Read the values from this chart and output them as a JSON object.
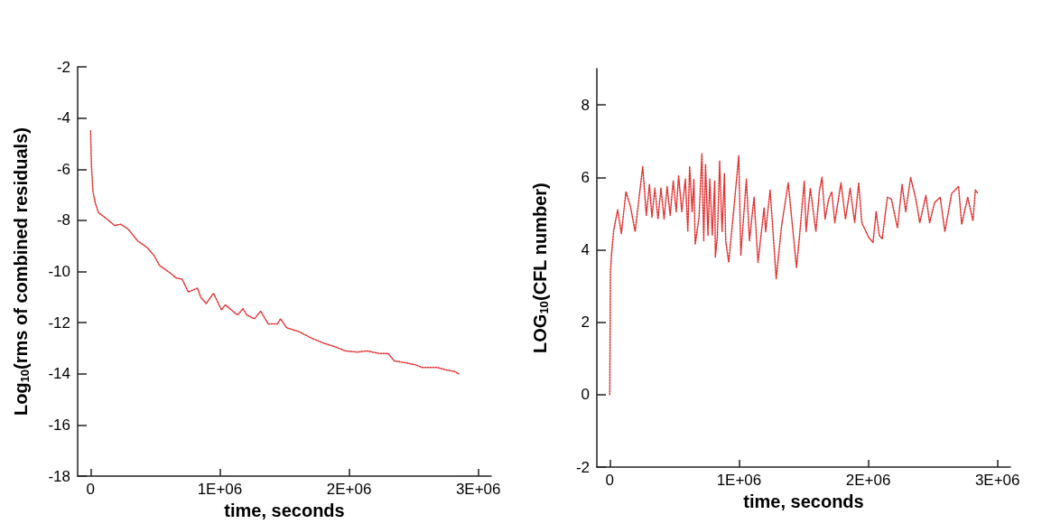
{
  "chart_data": [
    {
      "type": "line",
      "xlabel": "time, seconds",
      "ylabel": "Log$_{10}$(rms of combined residuals)",
      "line_style": "dotted",
      "marker": "none",
      "xlim": [
        -100000,
        3100000
      ],
      "xticks": [
        0,
        {
          "value": 1000000,
          "label": "1E+06"
        },
        {
          "value": 2000000,
          "label": "2E+06"
        },
        {
          "value": 3000000,
          "label": "3E+06"
        }
      ],
      "ylim": [
        -18,
        -2
      ],
      "yticks": [
        -18,
        -16,
        -14,
        -12,
        -10,
        -8,
        -6,
        -4,
        -2
      ],
      "series": [
        {
          "color": "#e03030",
          "x": [
            0,
            7000,
            19000,
            38000,
            62000,
            114000,
            186000,
            233000,
            293000,
            364000,
            435000,
            495000,
            531000,
            614000,
            661000,
            709000,
            756000,
            828000,
            852000,
            894000,
            951000,
            1013000,
            1042000,
            1137000,
            1180000,
            1208000,
            1268000,
            1316000,
            1375000,
            1446000,
            1470000,
            1518000,
            1613000,
            1708000,
            1803000,
            1898000,
            1970000,
            2065000,
            2136000,
            2232000,
            2303000,
            2351000,
            2422000,
            2517000,
            2565000,
            2684000,
            2755000,
            2814000,
            2850000
          ],
          "values": [
            -4.5,
            -5.9,
            -6.9,
            -7.35,
            -7.7,
            -7.9,
            -8.2,
            -8.15,
            -8.35,
            -8.8,
            -9.05,
            -9.4,
            -9.75,
            -10.05,
            -10.25,
            -10.3,
            -10.8,
            -10.65,
            -11.0,
            -11.25,
            -10.85,
            -11.5,
            -11.3,
            -11.7,
            -11.45,
            -11.7,
            -11.85,
            -11.55,
            -12.05,
            -12.05,
            -11.85,
            -12.2,
            -12.35,
            -12.6,
            -12.8,
            -12.95,
            -13.1,
            -13.15,
            -13.1,
            -13.2,
            -13.2,
            -13.5,
            -13.55,
            -13.65,
            -13.75,
            -13.75,
            -13.85,
            -13.9,
            -14.0
          ]
        }
      ]
    },
    {
      "type": "line",
      "xlabel": "time, seconds",
      "ylabel": "LOG$_{10}$(CFL number)",
      "line_style": "dotted",
      "marker": "none",
      "xlim": [
        -100000,
        3100000
      ],
      "xticks": [
        0,
        {
          "value": 1000000,
          "label": "1E+06"
        },
        {
          "value": 2000000,
          "label": "2E+06"
        },
        {
          "value": 3000000,
          "label": "3E+06"
        }
      ],
      "ylim": [
        -2,
        9
      ],
      "yticks": [
        -2,
        0,
        2,
        4,
        6,
        8
      ],
      "series": [
        {
          "color": "#e03030",
          "x": [
            0,
            5000,
            14000,
            31000,
            61000,
            90000,
            125000,
            160000,
            196000,
            255000,
            283000,
            307000,
            326000,
            349000,
            373000,
            396000,
            420000,
            444000,
            467000,
            491000,
            514000,
            533000,
            557000,
            585000,
            604000,
            618000,
            637000,
            651000,
            661000,
            691000,
            713000,
            727000,
            741000,
            760000,
            774000,
            793000,
            812000,
            817000,
            833000,
            850000,
            869000,
            887000,
            897000,
            920000,
            958000,
            998000,
            1014000,
            1057000,
            1081000,
            1116000,
            1147000,
            1194000,
            1206000,
            1241000,
            1288000,
            1329000,
            1381000,
            1445000,
            1469000,
            1505000,
            1519000,
            1552000,
            1595000,
            1623000,
            1642000,
            1666000,
            1694000,
            1718000,
            1741000,
            1789000,
            1824000,
            1860000,
            1895000,
            1926000,
            1950000,
            2002000,
            2037000,
            2061000,
            2085000,
            2108000,
            2148000,
            2179000,
            2226000,
            2262000,
            2290000,
            2328000,
            2368000,
            2399000,
            2446000,
            2475000,
            2513000,
            2557000,
            2593000,
            2645000,
            2699000,
            2723000,
            2770000,
            2810000,
            2829000,
            2850000
          ],
          "values": [
            0.0,
            3.35,
            3.9,
            4.55,
            5.1,
            4.45,
            5.6,
            5.2,
            4.5,
            6.3,
            4.95,
            5.8,
            4.9,
            5.7,
            4.85,
            5.7,
            4.85,
            5.75,
            4.95,
            5.9,
            5.05,
            6.05,
            5.05,
            5.95,
            4.5,
            6.3,
            5.05,
            5.95,
            4.15,
            4.9,
            6.65,
            4.25,
            6.35,
            4.4,
            5.95,
            4.4,
            5.9,
            3.8,
            4.4,
            6.45,
            4.5,
            6.1,
            4.25,
            3.65,
            5.05,
            6.6,
            3.85,
            5.95,
            4.25,
            5.45,
            3.65,
            5.15,
            4.5,
            5.65,
            3.2,
            4.65,
            5.85,
            3.5,
            4.4,
            5.9,
            4.5,
            5.7,
            4.5,
            5.65,
            6.0,
            4.85,
            5.4,
            5.6,
            4.75,
            5.85,
            4.85,
            5.7,
            4.75,
            5.85,
            4.75,
            4.35,
            4.2,
            5.05,
            4.4,
            4.3,
            5.45,
            5.4,
            4.6,
            5.8,
            5.05,
            6.0,
            5.4,
            4.75,
            5.5,
            4.75,
            5.3,
            5.45,
            4.5,
            5.55,
            5.75,
            4.7,
            5.45,
            4.8,
            5.65,
            5.55
          ]
        }
      ]
    }
  ]
}
